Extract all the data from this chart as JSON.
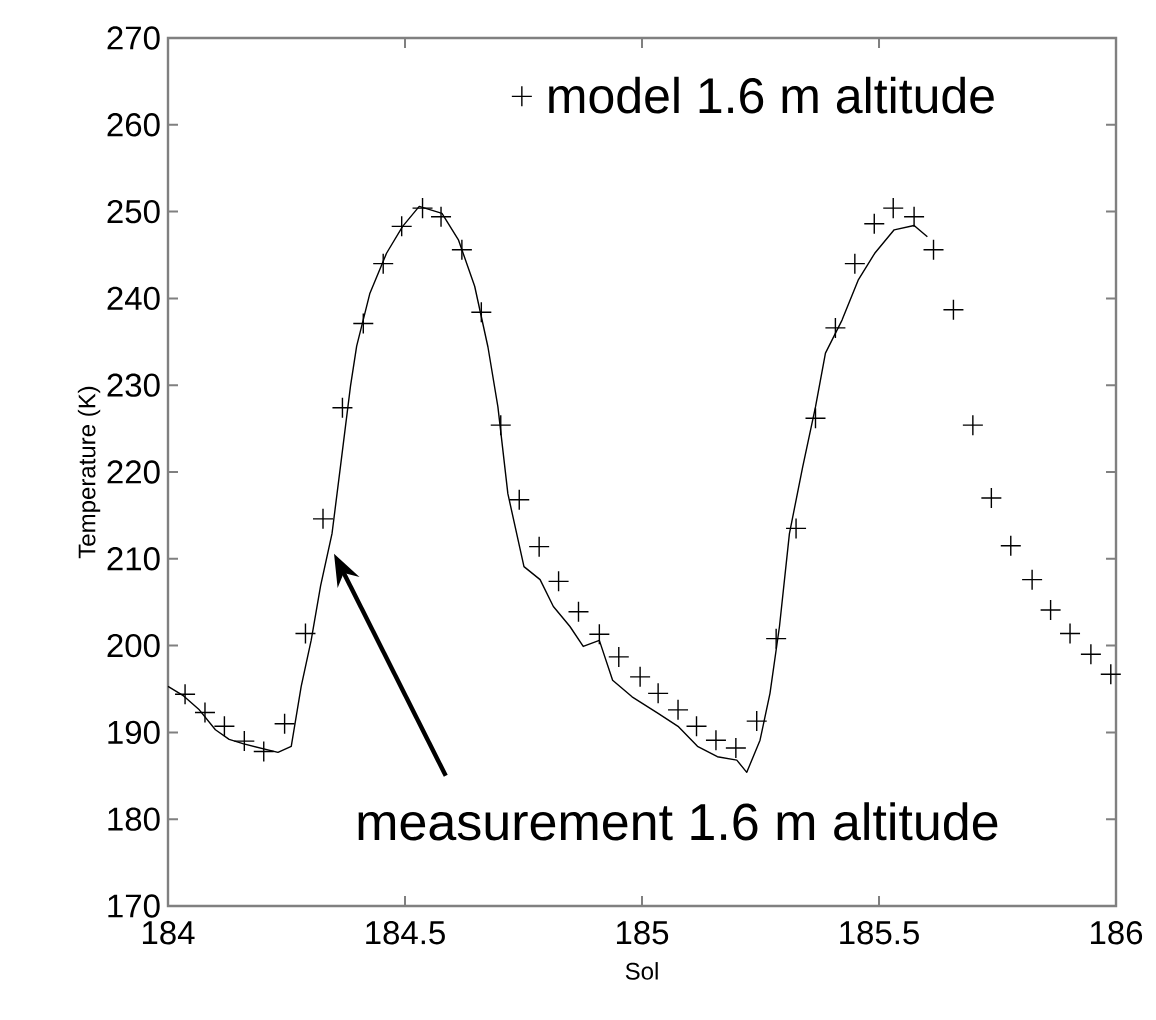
{
  "chart_data": {
    "type": "scatter",
    "xlabel": "Sol",
    "ylabel": "Temperature (K)",
    "xlim": [
      184,
      186
    ],
    "xticks": [
      184,
      184.5,
      185,
      185.5,
      186
    ],
    "ylim": [
      170,
      270
    ],
    "yticks": [
      170,
      180,
      190,
      200,
      210,
      220,
      230,
      240,
      250,
      260,
      270
    ],
    "grid": false,
    "legend": "top right",
    "series": [
      {
        "name": "model 1.6 m altitude",
        "marker": "cross",
        "color": "#000000",
        "x": [
          184.036,
          184.078,
          184.119,
          184.161,
          184.202,
          184.246,
          184.29,
          184.327,
          184.368,
          184.412,
          184.454,
          184.493,
          184.537,
          184.576,
          184.62,
          184.661,
          184.702,
          184.741,
          184.783,
          184.824,
          184.866,
          184.91,
          184.951,
          184.996,
          185.034,
          185.076,
          185.115,
          185.156,
          185.198,
          185.242,
          185.283,
          185.325,
          185.366,
          185.408,
          185.449,
          185.49,
          185.53,
          185.574,
          185.615,
          185.657,
          185.698,
          185.737,
          185.778,
          185.823,
          185.862,
          185.903,
          185.947,
          185.989
        ],
        "values": [
          194.4,
          192.3,
          190.7,
          189.0,
          187.8,
          191.0,
          201.4,
          214.6,
          227.4,
          237.1,
          244.0,
          248.3,
          250.4,
          249.4,
          245.6,
          238.4,
          225.4,
          216.8,
          211.4,
          207.4,
          203.9,
          201.3,
          198.7,
          196.4,
          194.5,
          192.6,
          190.7,
          189.1,
          188.2,
          191.3,
          200.8,
          213.5,
          226.2,
          236.6,
          244.0,
          248.6,
          250.4,
          249.4,
          245.6,
          238.7,
          225.4,
          217.0,
          211.5,
          207.6,
          204.1,
          201.4,
          199.0,
          196.7
        ]
      },
      {
        "name": "measurement 1.6 m altitude",
        "type": "line",
        "marker": "none",
        "line_style": "solid",
        "color": "#000000",
        "x": [
          184.0,
          184.033,
          184.066,
          184.1,
          184.129,
          184.158,
          184.232,
          184.26,
          184.281,
          184.302,
          184.322,
          184.346,
          184.364,
          184.385,
          184.398,
          184.426,
          184.461,
          184.495,
          184.53,
          184.578,
          184.613,
          184.647,
          184.675,
          184.696,
          184.717,
          184.751,
          184.785,
          184.813,
          184.848,
          184.876,
          184.91,
          184.938,
          184.979,
          185.034,
          185.076,
          185.117,
          185.159,
          185.2,
          185.221,
          185.249,
          185.27,
          185.29,
          185.311,
          185.339,
          185.366,
          185.387,
          185.422,
          185.456,
          185.491,
          185.532,
          185.574,
          185.602
        ],
        "values": [
          195.3,
          194.2,
          192.6,
          190.3,
          189.2,
          188.7,
          187.7,
          188.4,
          195.3,
          200.6,
          206.9,
          212.9,
          220.7,
          229.9,
          234.5,
          240.6,
          245.2,
          248.3,
          250.6,
          249.8,
          246.7,
          241.4,
          234.4,
          227.5,
          217.5,
          209.1,
          207.6,
          204.5,
          202.2,
          199.9,
          200.6,
          196.0,
          194.1,
          192.2,
          190.7,
          188.4,
          187.2,
          186.8,
          185.4,
          189.1,
          194.5,
          202.2,
          212.9,
          220.6,
          227.5,
          233.7,
          237.5,
          242.1,
          245.2,
          247.9,
          248.4,
          247.1
        ]
      }
    ]
  }
}
